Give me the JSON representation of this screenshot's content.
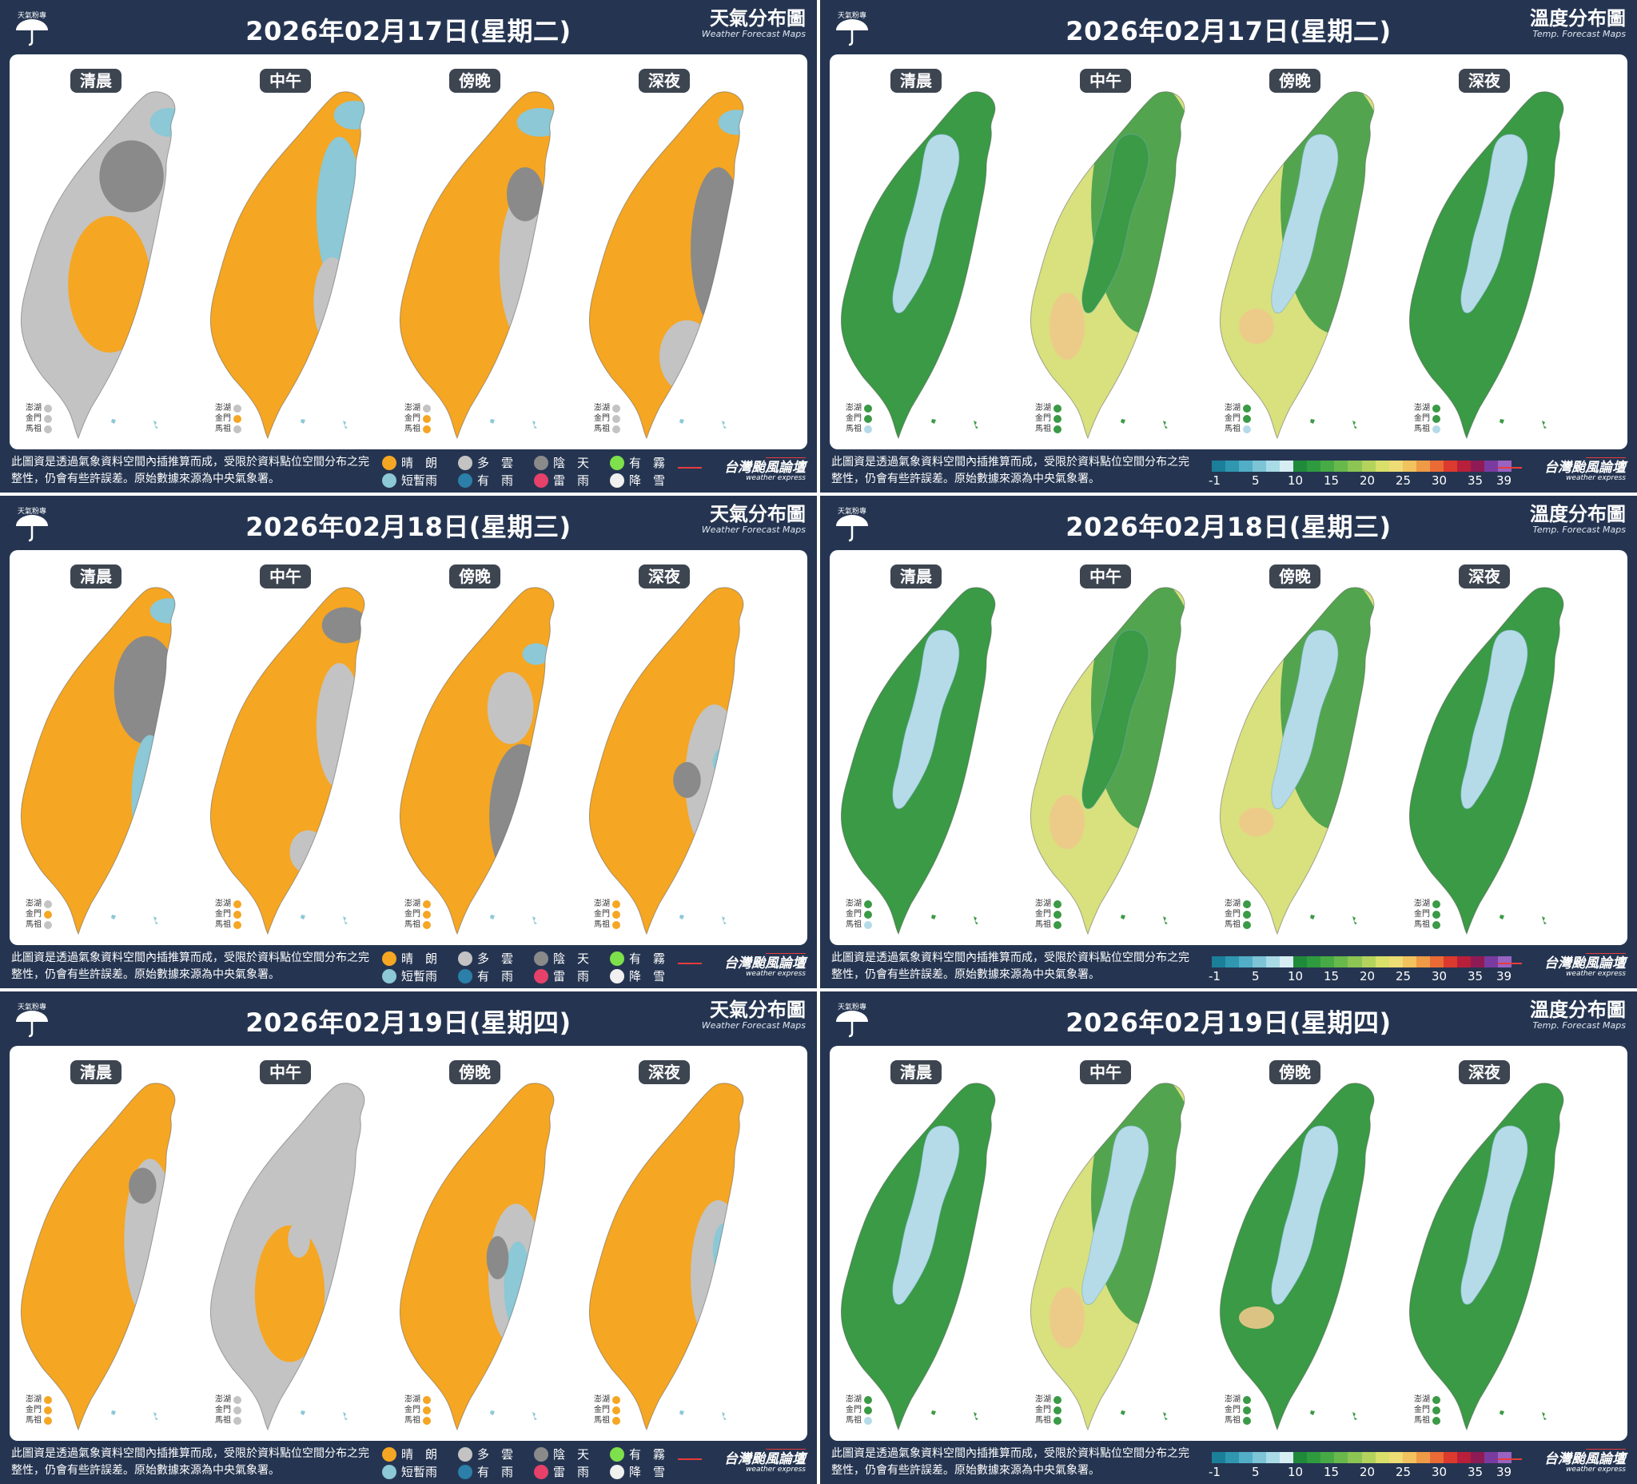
{
  "titles": {
    "weather_zh": "天氣分布圖",
    "weather_en": "Weather Forecast Maps",
    "temp_zh": "溫度分布圖",
    "temp_en": "Temp. Forecast Maps",
    "logo": "天氣粉專"
  },
  "periods": [
    "清晨",
    "中午",
    "傍晚",
    "深夜"
  ],
  "islands": [
    "澎湖",
    "金門",
    "馬祖"
  ],
  "footer_note": "此圖資是透過氣象資料空間內插推算而成，受限於資料點位空間分布之完整性，仍會有些許誤差。原始數據來源為中央氣象署。",
  "brand": {
    "zh": "台灣颱風論壇",
    "en": "weather express"
  },
  "weather_legend": [
    {
      "label": "晴　朗",
      "color": "#f5a623",
      "icon": "sunny-icon"
    },
    {
      "label": "多　雲",
      "color": "#c3c3c3",
      "icon": "cloudy-icon"
    },
    {
      "label": "陰　天",
      "color": "#8a8a8a",
      "icon": "overcast-icon"
    },
    {
      "label": "有　霧",
      "color": "#7ee04a",
      "icon": "fog-icon"
    },
    {
      "label": "短暫雨",
      "color": "#8cc8d6",
      "icon": "showers-icon"
    },
    {
      "label": "有　雨",
      "color": "#2b7fa8",
      "icon": "rain-icon"
    },
    {
      "label": "雷　雨",
      "color": "#e5416a",
      "icon": "thunderstorm-icon"
    },
    {
      "label": "降　雪",
      "color": "#f0f0f0",
      "icon": "snow-icon"
    }
  ],
  "temp_scale": {
    "ticks": [
      "-1",
      "5",
      "10",
      "15",
      "20",
      "25",
      "30",
      "35",
      "39"
    ],
    "colors": [
      "#1b7f99",
      "#2f97b0",
      "#52aec6",
      "#7cc4d6",
      "#a9dbe6",
      "#d6eef3",
      "#1f8a3a",
      "#2f9b3f",
      "#47aa45",
      "#68b84c",
      "#8cc553",
      "#b3d35c",
      "#d8e069",
      "#eedc74",
      "#f1c25d",
      "#ef9a46",
      "#ea6b36",
      "#dc3a2e",
      "#b81f3a",
      "#8e1b55",
      "#7a3ba0",
      "#9a63c1"
    ]
  },
  "colors": {
    "sunny": "#f5a623",
    "cloudy": "#c3c3c3",
    "overcast": "#8a8a8a",
    "showers": "#8cc8d6",
    "rain": "#2b7fa8",
    "lowland_temp": "#3a9a45",
    "warm_temp": "#d9e07e",
    "hot_temp": "#edc98a",
    "mountain_temp": "#b5dbe8"
  },
  "days": [
    {
      "date": "2026年02月17日(星期二)",
      "weather": [
        {
          "base": "cloudy",
          "blobs": [
            [
              "sunny",
              0.5,
              0.55,
              0.45,
              0.38
            ],
            [
              "overcast",
              0.62,
              0.25,
              0.35,
              0.2
            ],
            [
              "showers",
              0.82,
              0.1,
              0.2,
              0.08
            ]
          ],
          "islands": [
            "cloudy",
            "cloudy",
            "cloudy"
          ]
        },
        {
          "base": "sunny",
          "blobs": [
            [
              "showers",
              0.72,
              0.35,
              0.25,
              0.42
            ],
            [
              "showers",
              0.8,
              0.08,
              0.22,
              0.08
            ],
            [
              "cloudy",
              0.68,
              0.6,
              0.2,
              0.25
            ]
          ],
          "islands": [
            "cloudy",
            "sunny",
            "cloudy"
          ]
        },
        {
          "base": "sunny",
          "blobs": [
            [
              "cloudy",
              0.72,
              0.5,
              0.32,
              0.45
            ],
            [
              "showers",
              0.78,
              0.1,
              0.25,
              0.08
            ],
            [
              "overcast",
              0.7,
              0.3,
              0.2,
              0.15
            ]
          ],
          "islands": [
            "cloudy",
            "sunny",
            "sunny"
          ]
        },
        {
          "base": "sunny",
          "blobs": [
            [
              "overcast",
              0.72,
              0.45,
              0.3,
              0.45
            ],
            [
              "showers",
              0.82,
              0.1,
              0.2,
              0.07
            ],
            [
              "cloudy",
              0.55,
              0.75,
              0.3,
              0.2
            ]
          ],
          "islands": [
            "cloudy",
            "cloudy",
            "cloudy"
          ]
        }
      ],
      "temp": [
        {
          "low": "lowland_temp",
          "mount": "mountain_temp",
          "warm": 0.0,
          "islands": [
            "lowland_temp",
            "lowland_temp",
            "mountain_temp"
          ]
        },
        {
          "low": "warm_temp",
          "mount": "lowland_temp",
          "warm": 0.8,
          "islands": [
            "lowland_temp",
            "lowland_temp",
            "lowland_temp"
          ]
        },
        {
          "low": "warm_temp",
          "mount": "mountain_temp",
          "warm": 0.3,
          "islands": [
            "lowland_temp",
            "lowland_temp",
            "mountain_temp"
          ]
        },
        {
          "low": "lowland_temp",
          "mount": "mountain_temp",
          "warm": 0.0,
          "islands": [
            "lowland_temp",
            "lowland_temp",
            "mountain_temp"
          ]
        }
      ]
    },
    {
      "date": "2026年02月18日(星期三)",
      "weather": [
        {
          "base": "sunny",
          "blobs": [
            [
              "overcast",
              0.7,
              0.3,
              0.35,
              0.3
            ],
            [
              "showers",
              0.72,
              0.6,
              0.2,
              0.35
            ],
            [
              "showers",
              0.82,
              0.08,
              0.2,
              0.07
            ]
          ],
          "islands": [
            "cloudy",
            "sunny",
            "cloudy"
          ]
        },
        {
          "base": "sunny",
          "blobs": [
            [
              "cloudy",
              0.72,
              0.4,
              0.25,
              0.35
            ],
            [
              "overcast",
              0.75,
              0.12,
              0.25,
              0.1
            ],
            [
              "cloudy",
              0.55,
              0.75,
              0.2,
              0.12
            ]
          ],
          "islands": [
            "sunny",
            "sunny",
            "sunny"
          ]
        },
        {
          "base": "sunny",
          "blobs": [
            [
              "overcast",
              0.68,
              0.65,
              0.35,
              0.4
            ],
            [
              "cloudy",
              0.62,
              0.35,
              0.25,
              0.2
            ],
            [
              "showers",
              0.76,
              0.2,
              0.15,
              0.06
            ]
          ],
          "islands": [
            "sunny",
            "sunny",
            "sunny"
          ]
        },
        {
          "base": "sunny",
          "blobs": [
            [
              "cloudy",
              0.7,
              0.55,
              0.32,
              0.42
            ],
            [
              "overcast",
              0.55,
              0.55,
              0.15,
              0.1
            ],
            [
              "showers",
              0.75,
              0.5,
              0.12,
              0.08
            ]
          ],
          "islands": [
            "sunny",
            "sunny",
            "sunny"
          ]
        }
      ],
      "temp": [
        {
          "low": "lowland_temp",
          "mount": "mountain_temp",
          "warm": 0.0,
          "islands": [
            "lowland_temp",
            "lowland_temp",
            "mountain_temp"
          ]
        },
        {
          "low": "warm_temp",
          "mount": "lowland_temp",
          "warm": 0.6,
          "islands": [
            "lowland_temp",
            "lowland_temp",
            "lowland_temp"
          ]
        },
        {
          "low": "warm_temp",
          "mount": "mountain_temp",
          "warm": 0.2,
          "islands": [
            "lowland_temp",
            "lowland_temp",
            "lowland_temp"
          ]
        },
        {
          "low": "lowland_temp",
          "mount": "mountain_temp",
          "warm": 0.0,
          "islands": [
            "lowland_temp",
            "lowland_temp",
            "lowland_temp"
          ]
        }
      ]
    },
    {
      "date": "2026年02月19日(星期四)",
      "weather": [
        {
          "base": "sunny",
          "blobs": [
            [
              "cloudy",
              0.72,
              0.45,
              0.28,
              0.45
            ],
            [
              "overcast",
              0.68,
              0.3,
              0.15,
              0.1
            ]
          ],
          "islands": [
            "sunny",
            "sunny",
            "sunny"
          ]
        },
        {
          "base": "cloudy",
          "blobs": [
            [
              "sunny",
              0.45,
              0.6,
              0.38,
              0.38
            ],
            [
              "cloudy",
              0.5,
              0.45,
              0.12,
              0.1
            ]
          ],
          "islands": [
            "cloudy",
            "cloudy",
            "cloudy"
          ]
        },
        {
          "base": "sunny",
          "blobs": [
            [
              "cloudy",
              0.65,
              0.55,
              0.3,
              0.4
            ],
            [
              "showers",
              0.66,
              0.58,
              0.15,
              0.25
            ],
            [
              "overcast",
              0.55,
              0.5,
              0.12,
              0.12
            ]
          ],
          "islands": [
            "sunny",
            "sunny",
            "sunny"
          ]
        },
        {
          "base": "sunny",
          "blobs": [
            [
              "cloudy",
              0.72,
              0.55,
              0.3,
              0.42
            ],
            [
              "showers",
              0.75,
              0.48,
              0.12,
              0.15
            ]
          ],
          "islands": [
            "sunny",
            "sunny",
            "sunny"
          ]
        }
      ],
      "temp": [
        {
          "low": "lowland_temp",
          "mount": "mountain_temp",
          "warm": 0.0,
          "islands": [
            "lowland_temp",
            "lowland_temp",
            "mountain_temp"
          ]
        },
        {
          "low": "warm_temp",
          "mount": "mountain_temp",
          "warm": 0.7,
          "islands": [
            "lowland_temp",
            "lowland_temp",
            "lowland_temp"
          ]
        },
        {
          "low": "lowland_temp",
          "mount": "mountain_temp",
          "warm": 0.1,
          "islands": [
            "lowland_temp",
            "lowland_temp",
            "lowland_temp"
          ]
        },
        {
          "low": "lowland_temp",
          "mount": "mountain_temp",
          "warm": 0.0,
          "islands": [
            "lowland_temp",
            "lowland_temp",
            "lowland_temp"
          ]
        }
      ]
    }
  ]
}
